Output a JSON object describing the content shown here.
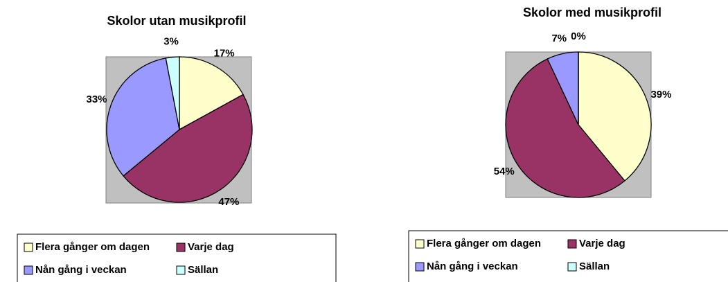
{
  "chart_data": [
    {
      "type": "pie",
      "title": "Skolor utan musikprofil",
      "categories": [
        "Flera gånger om dagen",
        "Varje dag",
        "Nån gång i veckan",
        "Sällan"
      ],
      "values": [
        17,
        47,
        33,
        3
      ],
      "value_labels": [
        "17%",
        "47%",
        "33%",
        "3%"
      ],
      "colors": [
        "#ffffcc",
        "#993366",
        "#9999ff",
        "#ccffff"
      ]
    },
    {
      "type": "pie",
      "title": "Skolor med musikprofil",
      "categories": [
        "Flera gånger om dagen",
        "Varje dag",
        "Nån gång i veckan",
        "Sällan"
      ],
      "values": [
        39,
        54,
        7,
        0
      ],
      "value_labels": [
        "39%",
        "54%",
        "7%",
        "0%"
      ],
      "colors": [
        "#ffffcc",
        "#993366",
        "#9999ff",
        "#ccffff"
      ]
    }
  ]
}
